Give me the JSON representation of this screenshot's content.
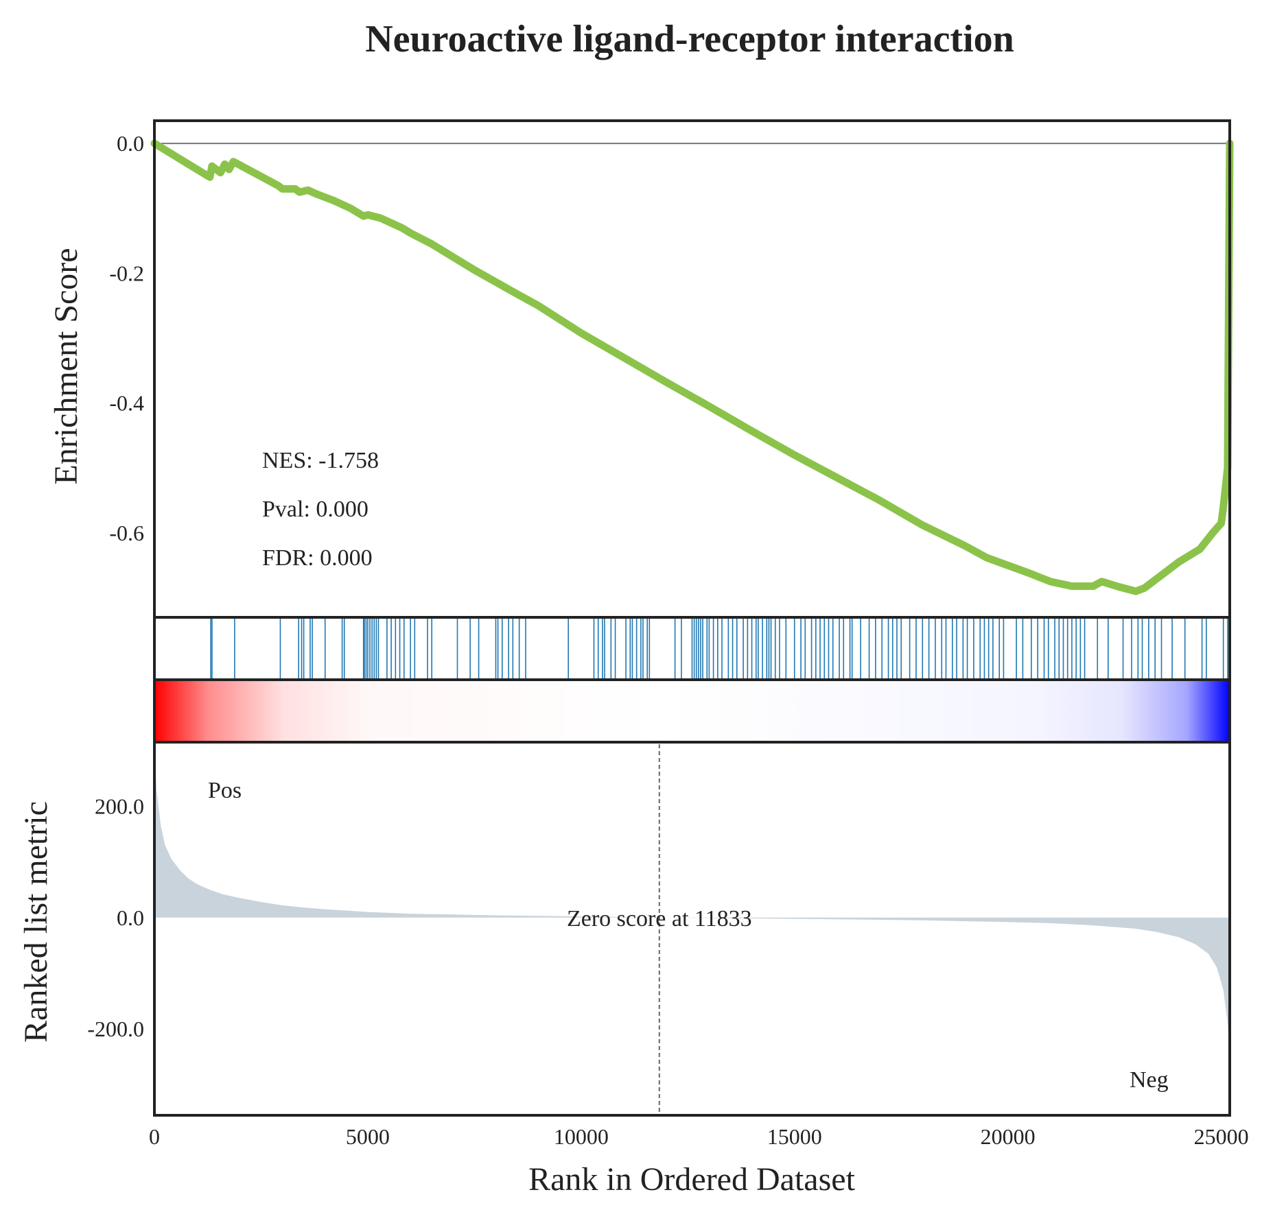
{
  "chart_data": {
    "type": "line",
    "title": "Neuroactive ligand-receptor interaction",
    "xlabel": "Rank in Ordered Dataset",
    "xlim": [
      0,
      25200
    ],
    "xticks": [
      "0",
      "5000",
      "10000",
      "15000",
      "20000",
      "25000"
    ],
    "xtick_values": [
      0,
      5000,
      10000,
      15000,
      20000,
      25000
    ],
    "enrichment": {
      "ylabel": "Enrichment Score",
      "ylim": [
        -0.73,
        0.035
      ],
      "yticks": [
        "0.0",
        "-0.2",
        "-0.4",
        "-0.6"
      ],
      "ytick_values": [
        0.0,
        -0.2,
        -0.4,
        -0.6
      ],
      "line_color": "#8bc34a",
      "points": [
        [
          0,
          0.0
        ],
        [
          1300,
          -0.052
        ],
        [
          1350,
          -0.035
        ],
        [
          1550,
          -0.045
        ],
        [
          1650,
          -0.032
        ],
        [
          1750,
          -0.04
        ],
        [
          1850,
          -0.028
        ],
        [
          2900,
          -0.065
        ],
        [
          3000,
          -0.07
        ],
        [
          3300,
          -0.07
        ],
        [
          3400,
          -0.075
        ],
        [
          3600,
          -0.072
        ],
        [
          3800,
          -0.078
        ],
        [
          4200,
          -0.088
        ],
        [
          4600,
          -0.1
        ],
        [
          4900,
          -0.112
        ],
        [
          5000,
          -0.11
        ],
        [
          5300,
          -0.115
        ],
        [
          5800,
          -0.13
        ],
        [
          6000,
          -0.138
        ],
        [
          6500,
          -0.155
        ],
        [
          7500,
          -0.195
        ],
        [
          8500,
          -0.232
        ],
        [
          9000,
          -0.25
        ],
        [
          10000,
          -0.292
        ],
        [
          11000,
          -0.33
        ],
        [
          12000,
          -0.368
        ],
        [
          13000,
          -0.405
        ],
        [
          14000,
          -0.443
        ],
        [
          15000,
          -0.48
        ],
        [
          16000,
          -0.515
        ],
        [
          17000,
          -0.55
        ],
        [
          18000,
          -0.588
        ],
        [
          19000,
          -0.62
        ],
        [
          19500,
          -0.638
        ],
        [
          20000,
          -0.65
        ],
        [
          20500,
          -0.662
        ],
        [
          21000,
          -0.675
        ],
        [
          21500,
          -0.682
        ],
        [
          22000,
          -0.682
        ],
        [
          22200,
          -0.675
        ],
        [
          22600,
          -0.683
        ],
        [
          23000,
          -0.69
        ],
        [
          23200,
          -0.685
        ],
        [
          23500,
          -0.67
        ],
        [
          24000,
          -0.645
        ],
        [
          24500,
          -0.625
        ],
        [
          24800,
          -0.6
        ],
        [
          25000,
          -0.585
        ],
        [
          25050,
          -0.56
        ],
        [
          25100,
          -0.53
        ],
        [
          25150,
          -0.5
        ],
        [
          25200,
          0.0
        ]
      ],
      "annotations": [
        "NES: -1.758",
        "Pval: 0.000",
        "FDR: 0.000"
      ]
    },
    "hits": {
      "color": "#1f77b4",
      "positions": [
        1320,
        1350,
        1880,
        2950,
        3380,
        3450,
        3500,
        3650,
        3700,
        4000,
        4400,
        4450,
        4900,
        4920,
        4960,
        5000,
        5050,
        5100,
        5150,
        5200,
        5250,
        5450,
        5550,
        5650,
        5750,
        5850,
        6000,
        6100,
        6400,
        6500,
        7100,
        7400,
        7600,
        8000,
        8050,
        8150,
        8300,
        8400,
        8550,
        8700,
        9700,
        10300,
        10400,
        10500,
        10550,
        10700,
        10800,
        11050,
        11150,
        11200,
        11300,
        11400,
        11450,
        11550,
        11600,
        12200,
        12350,
        12600,
        12650,
        12700,
        12750,
        12800,
        12850,
        12950,
        13000,
        13100,
        13200,
        13300,
        13450,
        13550,
        13650,
        13800,
        13900,
        14000,
        14100,
        14150,
        14250,
        14350,
        14400,
        14450,
        14550,
        14650,
        14800,
        15000,
        15150,
        15250,
        15400,
        15500,
        15600,
        15700,
        15800,
        15900,
        16050,
        16150,
        16300,
        16350,
        16550,
        16750,
        16900,
        17050,
        17200,
        17300,
        17400,
        17500,
        17700,
        17850,
        18000,
        18150,
        18300,
        18450,
        18550,
        18700,
        18800,
        18950,
        19050,
        19200,
        19350,
        19450,
        19550,
        19650,
        19800,
        19900,
        20200,
        20350,
        20550,
        20700,
        20850,
        20950,
        21100,
        21200,
        21300,
        21400,
        21500,
        21600,
        21700,
        21800,
        22100,
        22350,
        22700,
        22900,
        23050,
        23150,
        23300,
        23450,
        23600,
        23850,
        24150,
        24550,
        24650,
        25050,
        25150
      ]
    },
    "heatmap": {
      "positive_color": "#ff0000",
      "negative_color": "#0000ff"
    },
    "ranked_metric": {
      "ylabel": "Ranked list metric",
      "ylim": [
        -355,
        315
      ],
      "yticks": [
        "200.0",
        "0.0",
        "-200.0"
      ],
      "ytick_values": [
        200,
        0,
        -200
      ],
      "fill_color": "#c9d3dc",
      "points": [
        [
          0,
          300
        ],
        [
          50,
          230
        ],
        [
          150,
          165
        ],
        [
          250,
          130
        ],
        [
          400,
          105
        ],
        [
          600,
          85
        ],
        [
          800,
          70
        ],
        [
          1000,
          60
        ],
        [
          1300,
          50
        ],
        [
          1600,
          42
        ],
        [
          2000,
          35
        ],
        [
          2500,
          28
        ],
        [
          3000,
          22
        ],
        [
          3500,
          18
        ],
        [
          4000,
          15
        ],
        [
          5000,
          10
        ],
        [
          6000,
          7
        ],
        [
          8000,
          4
        ],
        [
          10000,
          2
        ],
        [
          11833,
          0
        ],
        [
          14000,
          -1.5
        ],
        [
          16000,
          -3
        ],
        [
          18000,
          -5
        ],
        [
          20000,
          -8
        ],
        [
          21000,
          -10
        ],
        [
          22000,
          -14
        ],
        [
          23000,
          -20
        ],
        [
          23500,
          -26
        ],
        [
          24000,
          -35
        ],
        [
          24400,
          -48
        ],
        [
          24700,
          -65
        ],
        [
          24900,
          -90
        ],
        [
          25050,
          -130
        ],
        [
          25150,
          -190
        ],
        [
          25200,
          -250
        ]
      ],
      "zero_score_label": "Zero score at 11833",
      "zero_score_rank": 11833,
      "pos_label": "Pos",
      "pos_color": "#ff0000",
      "neg_label": "Neg",
      "neg_color": "#0000ff"
    }
  }
}
